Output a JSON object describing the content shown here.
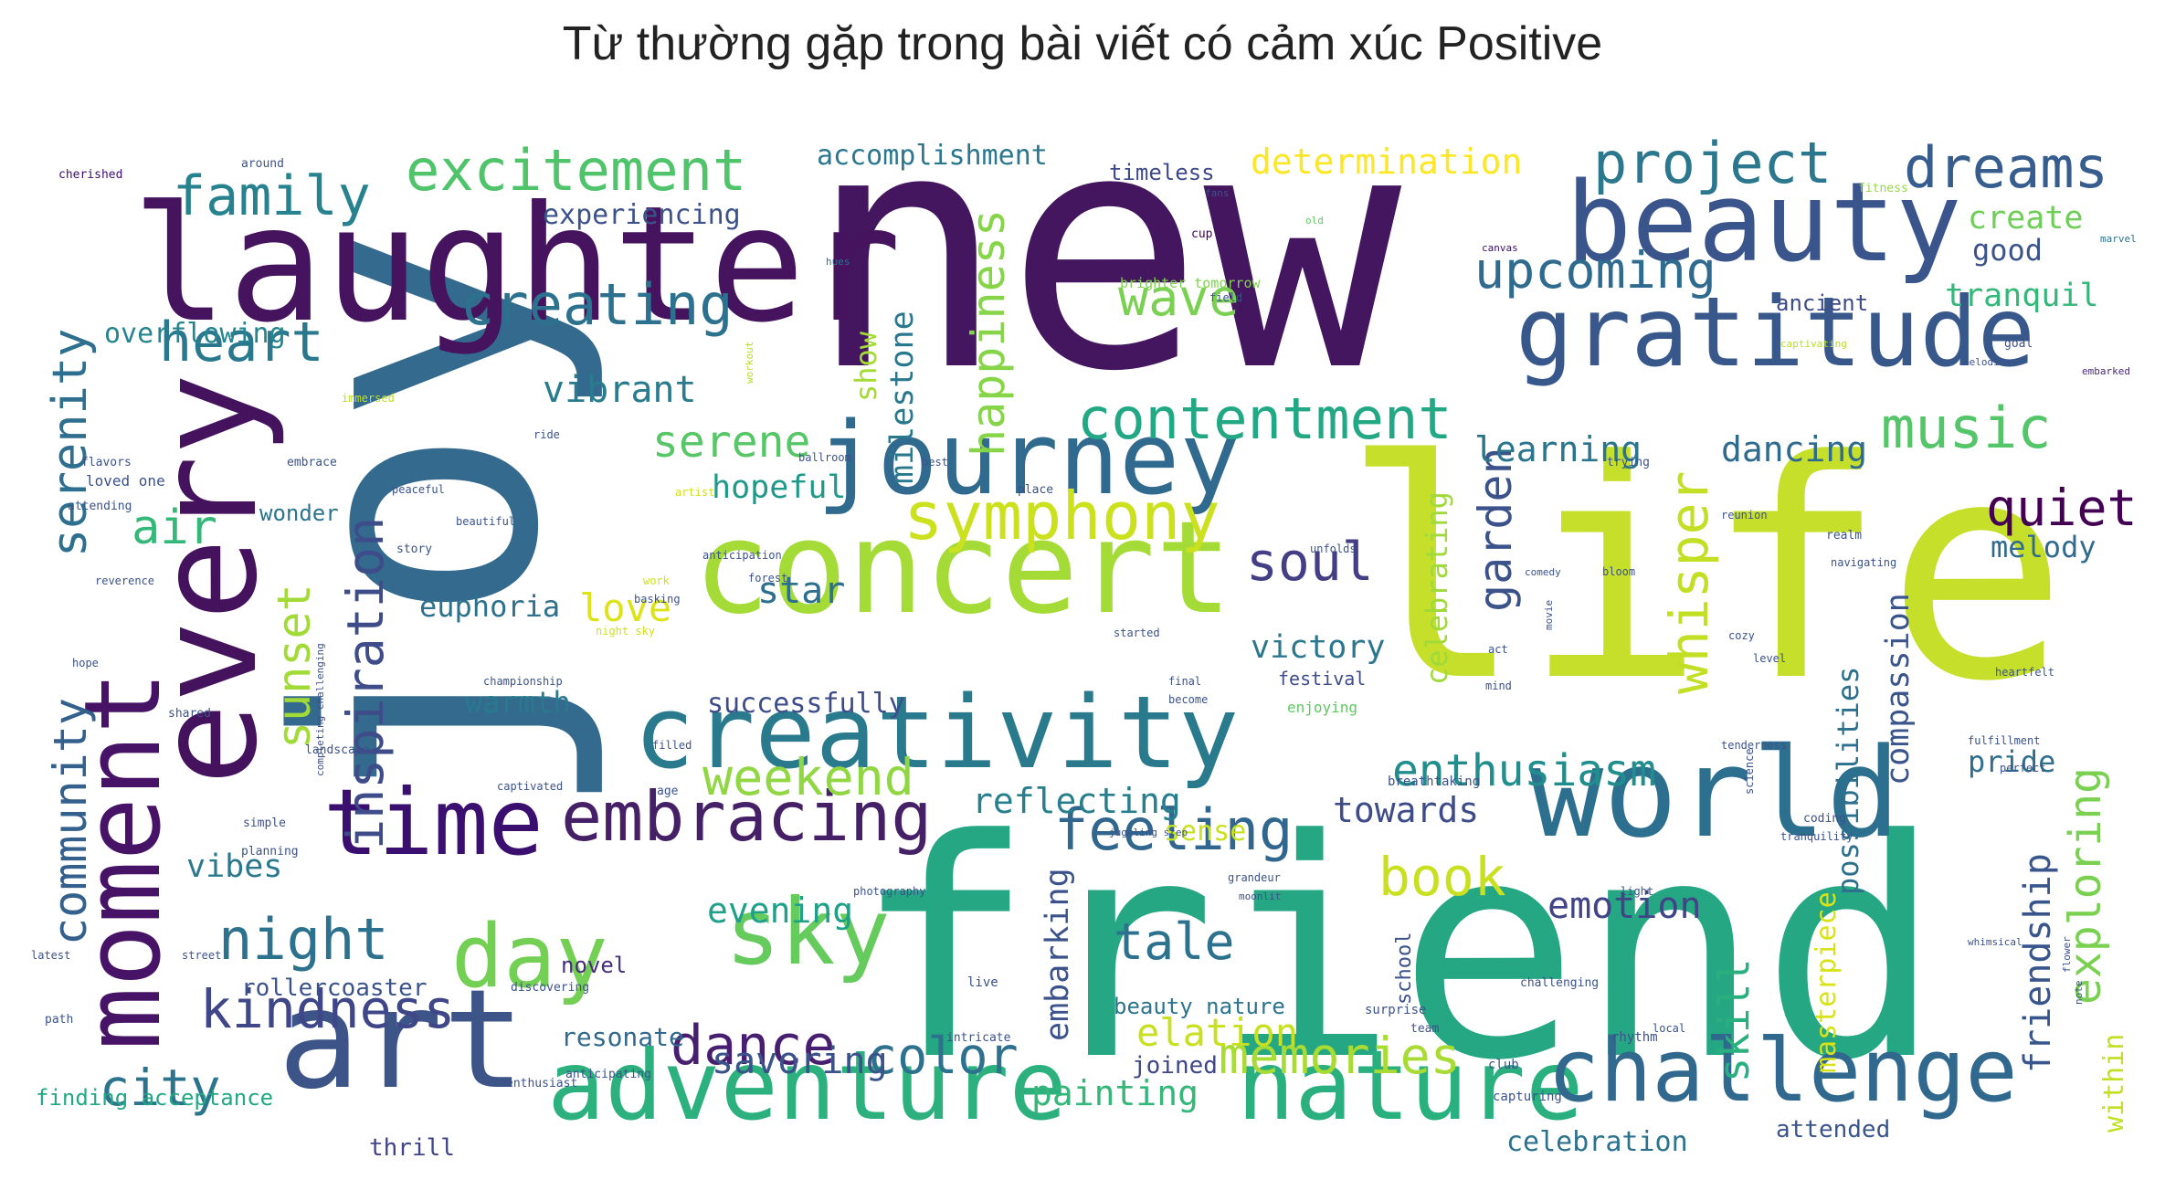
{
  "chart_data": {
    "type": "wordcloud",
    "title": "Từ thường gặp trong bài viết có cảm xúc Positive",
    "words": [
      {
        "text": "new",
        "color": "#43165f"
      },
      {
        "text": "joy",
        "color": "#336a8e"
      },
      {
        "text": "life",
        "color": "#c6df2b"
      },
      {
        "text": "friend",
        "color": "#25a784"
      },
      {
        "text": "laughter",
        "color": "#46145f"
      },
      {
        "text": "every",
        "color": "#45125e"
      },
      {
        "text": "moment",
        "color": "#471366"
      },
      {
        "text": "concert",
        "color": "#a5db36"
      },
      {
        "text": "creativity",
        "color": "#2a7a8e"
      },
      {
        "text": "world",
        "color": "#2d6f8e"
      },
      {
        "text": "art",
        "color": "#3c5488"
      },
      {
        "text": "journey",
        "color": "#306a8e"
      },
      {
        "text": "beauty",
        "color": "#3a548c"
      },
      {
        "text": "gratitude",
        "color": "#38588c"
      },
      {
        "text": "adventure",
        "color": "#2cb17e"
      },
      {
        "text": "nature",
        "color": "#2ab07f"
      },
      {
        "text": "challenge",
        "color": "#30688e"
      },
      {
        "text": "time",
        "color": "#3b0f70"
      },
      {
        "text": "sky",
        "color": "#66cb5d"
      },
      {
        "text": "day",
        "color": "#74d055"
      },
      {
        "text": "embracing",
        "color": "#462066"
      },
      {
        "text": "excitement",
        "color": "#4fc46a"
      },
      {
        "text": "creating",
        "color": "#2c728e"
      },
      {
        "text": "family",
        "color": "#26828e"
      },
      {
        "text": "heart",
        "color": "#2a788e"
      },
      {
        "text": "symphony",
        "color": "#cbe11e"
      },
      {
        "text": "contentment",
        "color": "#22a884"
      },
      {
        "text": "project",
        "color": "#2a778e"
      },
      {
        "text": "dreams",
        "color": "#365d8d"
      },
      {
        "text": "upcoming",
        "color": "#2f6b8e"
      },
      {
        "text": "wave",
        "color": "#7ad151"
      },
      {
        "text": "happiness",
        "color": "#86d549"
      },
      {
        "text": "inspiration",
        "color": "#3e4c8a"
      },
      {
        "text": "community",
        "color": "#34608d"
      },
      {
        "text": "serenity",
        "color": "#2e6e8e"
      },
      {
        "text": "sunset",
        "color": "#a2da37"
      },
      {
        "text": "night",
        "color": "#2c718e"
      },
      {
        "text": "kindness",
        "color": "#3f4788"
      },
      {
        "text": "city",
        "color": "#2c738e"
      },
      {
        "text": "weekend",
        "color": "#90d743"
      },
      {
        "text": "feeling",
        "color": "#31668e"
      },
      {
        "text": "tale",
        "color": "#2c728e"
      },
      {
        "text": "dance",
        "color": "#481f70"
      },
      {
        "text": "color",
        "color": "#2d718e"
      },
      {
        "text": "memories",
        "color": "#a8db34"
      },
      {
        "text": "music",
        "color": "#54c568"
      },
      {
        "text": "quiet",
        "color": "#440154"
      },
      {
        "text": "melody",
        "color": "#306a8e"
      },
      {
        "text": "soul",
        "color": "#433e85"
      },
      {
        "text": "whisper",
        "color": "#c2df23"
      },
      {
        "text": "enthusiasm",
        "color": "#218e8d"
      },
      {
        "text": "garden",
        "color": "#3b528b"
      },
      {
        "text": "celebrating",
        "color": "#a0da39"
      },
      {
        "text": "book",
        "color": "#c8e020"
      },
      {
        "text": "emotion",
        "color": "#414487"
      },
      {
        "text": "exploring",
        "color": "#7ad151"
      },
      {
        "text": "friendship",
        "color": "#39568c"
      },
      {
        "text": "compassion",
        "color": "#3a548c"
      },
      {
        "text": "possibilities",
        "color": "#2d708e"
      },
      {
        "text": "masterpiece",
        "color": "#d8e219"
      },
      {
        "text": "within",
        "color": "#c2df23"
      },
      {
        "text": "skill",
        "color": "#2ab07f"
      },
      {
        "text": "serene",
        "color": "#56c667"
      },
      {
        "text": "vibrant",
        "color": "#297b8e"
      },
      {
        "text": "air",
        "color": "#35b779"
      },
      {
        "text": "love",
        "color": "#dde318"
      },
      {
        "text": "star",
        "color": "#2d708e"
      },
      {
        "text": "euphoria",
        "color": "#2d718e"
      },
      {
        "text": "warmth",
        "color": "#297a8e"
      },
      {
        "text": "hopeful",
        "color": "#1f9a8a"
      },
      {
        "text": "victory",
        "color": "#2a778e"
      },
      {
        "text": "successfully",
        "color": "#3d4d8a"
      },
      {
        "text": "reflecting",
        "color": "#277f8e"
      },
      {
        "text": "towards",
        "color": "#3e4c8a"
      },
      {
        "text": "sense",
        "color": "#cae11f"
      },
      {
        "text": "evening",
        "color": "#1fa088"
      },
      {
        "text": "vibes",
        "color": "#2a788e"
      },
      {
        "text": "savoring",
        "color": "#3a538b"
      },
      {
        "text": "painting",
        "color": "#35b779"
      },
      {
        "text": "elation",
        "color": "#c8e020"
      },
      {
        "text": "embarking",
        "color": "#3b528b"
      },
      {
        "text": "learning",
        "color": "#2b748e"
      },
      {
        "text": "dancing",
        "color": "#2f6b8e"
      },
      {
        "text": "pride",
        "color": "#2e6f8e"
      },
      {
        "text": "accomplishment",
        "color": "#2a778e"
      },
      {
        "text": "determination",
        "color": "#fde725"
      },
      {
        "text": "experiencing",
        "color": "#3b528b"
      },
      {
        "text": "overflowing",
        "color": "#25858e"
      },
      {
        "text": "milestone",
        "color": "#2a788e"
      },
      {
        "text": "show",
        "color": "#a5db36"
      },
      {
        "text": "create",
        "color": "#6ece58"
      },
      {
        "text": "good",
        "color": "#3b528b"
      },
      {
        "text": "tranquil",
        "color": "#35b779"
      },
      {
        "text": "ancient",
        "color": "#3e4a89"
      },
      {
        "text": "timeless",
        "color": "#3e4a89"
      },
      {
        "text": "wonder",
        "color": "#2b748e"
      },
      {
        "text": "resonate",
        "color": "#31688e"
      },
      {
        "text": "novel",
        "color": "#472c7a"
      },
      {
        "text": "joined",
        "color": "#3f4788"
      },
      {
        "text": "attended",
        "color": "#3a548c"
      },
      {
        "text": "celebration",
        "color": "#2c728e"
      },
      {
        "text": "thrill",
        "color": "#414487"
      },
      {
        "text": "rollercoaster",
        "color": "#3b528b"
      },
      {
        "text": "finding acceptance",
        "color": "#22a884"
      },
      {
        "text": "beauty nature",
        "color": "#2c738e"
      },
      {
        "text": "school",
        "color": "#3b528b"
      },
      {
        "text": "festival",
        "color": "#3e4c8a"
      },
      {
        "text": "enjoying",
        "color": "#5ec962"
      },
      {
        "text": "brighter tomorrow",
        "color": "#7fd34e"
      },
      {
        "text": "cherished",
        "color": "#3b0f70"
      },
      {
        "text": "around",
        "color": "#3b528b"
      },
      {
        "text": "fitness",
        "color": "#95d840"
      },
      {
        "text": "fans",
        "color": "#3b528b"
      },
      {
        "text": "cup",
        "color": "#440154"
      },
      {
        "text": "canvas",
        "color": "#3b0f70"
      },
      {
        "text": "workout",
        "color": "#b5de2b"
      },
      {
        "text": "hues",
        "color": "#2c728e"
      },
      {
        "text": "old",
        "color": "#63cb5f"
      },
      {
        "text": "field",
        "color": "#3b528b"
      },
      {
        "text": "marvel",
        "color": "#2c728e"
      },
      {
        "text": "captivating",
        "color": "#b5de2b"
      },
      {
        "text": "goal",
        "color": "#3b528b"
      },
      {
        "text": "melodies",
        "color": "#3b528b"
      },
      {
        "text": "embarked",
        "color": "#482878"
      },
      {
        "text": "immersed",
        "color": "#bddf26"
      },
      {
        "text": "ride",
        "color": "#3b528b"
      },
      {
        "text": "flavors",
        "color": "#3b528b"
      },
      {
        "text": "embrace",
        "color": "#3b528b"
      },
      {
        "text": "loved one",
        "color": "#3b528b"
      },
      {
        "text": "attending",
        "color": "#3b528b"
      },
      {
        "text": "peaceful",
        "color": "#3b528b"
      },
      {
        "text": "beautiful",
        "color": "#3b528b"
      },
      {
        "text": "story",
        "color": "#3b528b"
      },
      {
        "text": "artist",
        "color": "#d0e11c"
      },
      {
        "text": "ballroom",
        "color": "#3b528b"
      },
      {
        "text": "best",
        "color": "#3b528b"
      },
      {
        "text": "place",
        "color": "#3b528b"
      },
      {
        "text": "trying",
        "color": "#3b528b"
      },
      {
        "text": "reunion",
        "color": "#3b528b"
      },
      {
        "text": "realm",
        "color": "#3b528b"
      },
      {
        "text": "unfolds",
        "color": "#3b528b"
      },
      {
        "text": "comedy",
        "color": "#3b528b"
      },
      {
        "text": "bloom",
        "color": "#3b528b"
      },
      {
        "text": "navigating",
        "color": "#3b528b"
      },
      {
        "text": "anticipation",
        "color": "#3b528b"
      },
      {
        "text": "forest",
        "color": "#3b528b"
      },
      {
        "text": "work",
        "color": "#d0e11c"
      },
      {
        "text": "movie",
        "color": "#3b528b"
      },
      {
        "text": "started",
        "color": "#3b528b"
      },
      {
        "text": "cozy",
        "color": "#3b528b"
      },
      {
        "text": "level",
        "color": "#3b528b"
      },
      {
        "text": "act",
        "color": "#3b528b"
      },
      {
        "text": "mind",
        "color": "#3b528b"
      },
      {
        "text": "final",
        "color": "#3b528b"
      },
      {
        "text": "become",
        "color": "#3b528b"
      },
      {
        "text": "heartfelt",
        "color": "#3b528b"
      },
      {
        "text": "reverence",
        "color": "#3b528b"
      },
      {
        "text": "basking",
        "color": "#3b528b"
      },
      {
        "text": "night sky",
        "color": "#d0e11c"
      },
      {
        "text": "completing challenging",
        "color": "#3b528b"
      },
      {
        "text": "championship",
        "color": "#3b528b"
      },
      {
        "text": "science",
        "color": "#3b528b"
      },
      {
        "text": "tenderness",
        "color": "#3b528b"
      },
      {
        "text": "fulfillment",
        "color": "#3b528b"
      },
      {
        "text": "perfect",
        "color": "#3b528b"
      },
      {
        "text": "hope",
        "color": "#3b528b"
      },
      {
        "text": "shared",
        "color": "#3b528b"
      },
      {
        "text": "landscape",
        "color": "#3b528b"
      },
      {
        "text": "filled",
        "color": "#3b528b"
      },
      {
        "text": "captivated",
        "color": "#3b528b"
      },
      {
        "text": "age",
        "color": "#3b528b"
      },
      {
        "text": "simple",
        "color": "#3b528b"
      },
      {
        "text": "juggling step",
        "color": "#3b528b"
      },
      {
        "text": "breathtaking",
        "color": "#3b528b"
      },
      {
        "text": "coding",
        "color": "#3b528b"
      },
      {
        "text": "tranquility",
        "color": "#3b528b"
      },
      {
        "text": "planning",
        "color": "#3b528b"
      },
      {
        "text": "photography",
        "color": "#3b528b"
      },
      {
        "text": "grandeur",
        "color": "#3b528b"
      },
      {
        "text": "moonlit",
        "color": "#3b528b"
      },
      {
        "text": "light",
        "color": "#3b528b"
      },
      {
        "text": "whimsical",
        "color": "#3b528b"
      },
      {
        "text": "flower",
        "color": "#3b528b"
      },
      {
        "text": "note",
        "color": "#3b528b"
      },
      {
        "text": "latest",
        "color": "#3b528b"
      },
      {
        "text": "street",
        "color": "#3b528b"
      },
      {
        "text": "discovering",
        "color": "#3b528b"
      },
      {
        "text": "live",
        "color": "#3b528b"
      },
      {
        "text": "surprise",
        "color": "#3b528b"
      },
      {
        "text": "challenging",
        "color": "#3b528b"
      },
      {
        "text": "team",
        "color": "#3b528b"
      },
      {
        "text": "path",
        "color": "#3b528b"
      },
      {
        "text": "intricate",
        "color": "#3b528b"
      },
      {
        "text": "rhythm",
        "color": "#3b528b"
      },
      {
        "text": "local",
        "color": "#3b528b"
      },
      {
        "text": "anticipating",
        "color": "#3b528b"
      },
      {
        "text": "enthusiast",
        "color": "#3b528b"
      },
      {
        "text": "club",
        "color": "#3b528b"
      },
      {
        "text": "capturing",
        "color": "#3b528b"
      }
    ]
  }
}
